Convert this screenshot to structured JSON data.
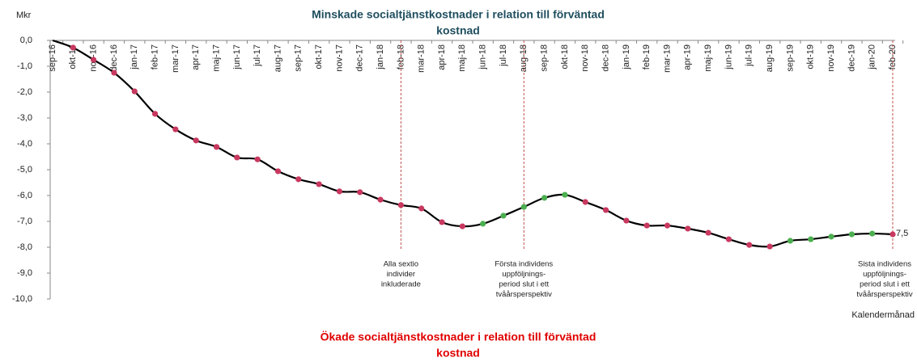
{
  "chart_data": {
    "type": "line",
    "title": [
      "Minskade socialtjänstkostnader i relation till förväntad",
      "kostnad"
    ],
    "title_color": "#1f4e5f",
    "bottom_title": [
      "Ökade socialtjänstkostnader i relation till förväntad",
      "kostnad"
    ],
    "bottom_title_color": "#e00000",
    "y_label": "Mkr",
    "x_label": "Kalendermånad",
    "categories": [
      "sep-16",
      "okt-16",
      "nov-16",
      "dec-16",
      "jan-17",
      "feb-17",
      "mar-17",
      "apr-17",
      "maj-17",
      "jun-17",
      "jul-17",
      "aug-17",
      "sep-17",
      "okt-17",
      "nov-17",
      "dec-17",
      "jan-18",
      "feb-18",
      "mar-18",
      "apr-18",
      "maj-18",
      "jun-18",
      "jul-18",
      "aug-18",
      "sep-18",
      "okt-18",
      "nov-18",
      "dec-18",
      "jan-19",
      "feb-19",
      "mar-19",
      "apr-19",
      "maj-19",
      "jun-19",
      "jul-19",
      "aug-19",
      "sep-19",
      "okt-19",
      "nov-19",
      "dec-19",
      "jan-20",
      "feb-20"
    ],
    "series": [
      {
        "color": "#000000",
        "values": [
          0.0,
          -0.28,
          -0.75,
          -1.25,
          -1.97,
          -2.84,
          -3.44,
          -3.87,
          -4.12,
          -4.53,
          -4.6,
          -5.06,
          -5.37,
          -5.56,
          -5.84,
          -5.87,
          -6.16,
          -6.37,
          -6.5,
          -7.03,
          -7.19,
          -7.09,
          -6.78,
          -6.44,
          -6.09,
          -5.97,
          -6.25,
          -6.56,
          -6.97,
          -7.16,
          -7.16,
          -7.28,
          -7.44,
          -7.69,
          -7.91,
          -7.97,
          -7.75,
          -7.69,
          -7.59,
          -7.5,
          -7.47,
          -7.5
        ],
        "point_colors": [
          null,
          "#c8385f",
          "#c8385f",
          "#c8385f",
          "#c8385f",
          "#c8385f",
          "#c8385f",
          "#c8385f",
          "#c8385f",
          "#c8385f",
          "#c8385f",
          "#c8385f",
          "#c8385f",
          "#c8385f",
          "#c8385f",
          "#c8385f",
          "#c8385f",
          "#c8385f",
          "#c8385f",
          "#c8385f",
          "#c8385f",
          "#4caf50",
          "#4caf50",
          "#4caf50",
          "#4caf50",
          "#4caf50",
          "#c8385f",
          "#c8385f",
          "#c8385f",
          "#c8385f",
          "#c8385f",
          "#c8385f",
          "#c8385f",
          "#c8385f",
          "#c8385f",
          "#c8385f",
          "#4caf50",
          "#4caf50",
          "#4caf50",
          "#4caf50",
          "#4caf50",
          "#c8385f"
        ],
        "value_labels": [
          null,
          null,
          null,
          null,
          null,
          null,
          null,
          null,
          null,
          null,
          null,
          null,
          null,
          null,
          null,
          null,
          null,
          null,
          null,
          null,
          null,
          null,
          null,
          null,
          null,
          null,
          null,
          null,
          null,
          null,
          null,
          null,
          null,
          null,
          null,
          null,
          null,
          null,
          null,
          null,
          null,
          "7,5"
        ]
      }
    ],
    "ylim": [
      -10,
      0
    ],
    "yticks": [
      {
        "value": 0,
        "label": "0,0"
      },
      {
        "value": -1,
        "label": "-1,0"
      },
      {
        "value": -2,
        "label": "-2,0"
      },
      {
        "value": -3,
        "label": "-3,0"
      },
      {
        "value": -4,
        "label": "-4,0"
      },
      {
        "value": -5,
        "label": "-5,0"
      },
      {
        "value": -6,
        "label": "-6,0"
      },
      {
        "value": -7,
        "label": "-7,0"
      },
      {
        "value": -8,
        "label": "-8,0"
      },
      {
        "value": -9,
        "label": "-9,0"
      },
      {
        "value": -10,
        "label": "-10,0"
      }
    ],
    "annotations": [
      {
        "category": "feb-18",
        "text": [
          "Alla sextio",
          "individer",
          "inkluderade"
        ]
      },
      {
        "category": "aug-18",
        "text": [
          "Första individens",
          "uppföljnings-",
          "period slut i ett",
          "tvåårsperspektiv"
        ]
      },
      {
        "category": "feb-20",
        "text": [
          "Sista individens",
          "uppföljnings-",
          "period slut i ett",
          "tvåårsperspektiv"
        ]
      }
    ],
    "annotation_color": "#c0504d"
  }
}
